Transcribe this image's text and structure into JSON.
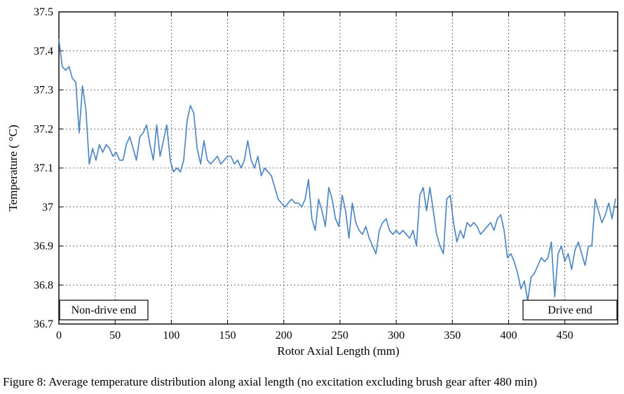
{
  "figure": {
    "caption": "Figure 8: Average temperature distribution along axial length (no excitation excluding brush gear after 480 min)"
  },
  "chart_data": {
    "type": "line",
    "title": "",
    "xlabel": "Rotor Axial Length (mm)",
    "ylabel": "Temperature ( °C)",
    "xlim": [
      0,
      497
    ],
    "ylim": [
      36.7,
      37.5
    ],
    "grid": true,
    "legend_position": "none",
    "line_color": "#4f87c5",
    "grid_color": "#444444",
    "frame_color": "#000000",
    "x_ticks": [
      0,
      50,
      100,
      150,
      200,
      250,
      300,
      350,
      400,
      450
    ],
    "x_tick_labels": [
      "0",
      "50",
      "100",
      "150",
      "200",
      "250",
      "300",
      "350",
      "400",
      "450"
    ],
    "y_ticks": [
      36.7,
      36.8,
      36.9,
      37,
      37.1,
      37.2,
      37.3,
      37.4,
      37.5
    ],
    "y_tick_labels": [
      "36.7",
      "36.8",
      "36.9",
      "37",
      "37.1",
      "37.2",
      "37.3",
      "37.4",
      "37.5"
    ],
    "annotations": [
      {
        "text": "Non-drive end",
        "position": "bottom-left"
      },
      {
        "text": "Drive end",
        "position": "bottom-right"
      }
    ],
    "series": [
      {
        "name": "Average temperature",
        "x": [
          0,
          3,
          6,
          9,
          12,
          15,
          18,
          21,
          24,
          27,
          30,
          33,
          36,
          39,
          42,
          45,
          48,
          51,
          54,
          57,
          60,
          63,
          66,
          69,
          72,
          75,
          78,
          81,
          84,
          87,
          90,
          93,
          96,
          99,
          102,
          105,
          108,
          111,
          114,
          117,
          120,
          123,
          126,
          129,
          132,
          135,
          138,
          141,
          144,
          147,
          150,
          153,
          156,
          159,
          162,
          165,
          168,
          171,
          174,
          177,
          180,
          183,
          186,
          189,
          192,
          195,
          198,
          201,
          204,
          207,
          210,
          213,
          216,
          219,
          222,
          225,
          228,
          231,
          234,
          237,
          240,
          243,
          246,
          249,
          252,
          255,
          258,
          261,
          264,
          267,
          270,
          273,
          276,
          279,
          282,
          285,
          288,
          291,
          294,
          297,
          300,
          303,
          306,
          309,
          312,
          315,
          318,
          321,
          324,
          327,
          330,
          333,
          336,
          339,
          342,
          345,
          348,
          351,
          354,
          357,
          360,
          363,
          366,
          369,
          372,
          375,
          378,
          381,
          384,
          387,
          390,
          393,
          396,
          399,
          402,
          405,
          408,
          411,
          414,
          417,
          420,
          423,
          426,
          429,
          432,
          435,
          438,
          441,
          444,
          447,
          450,
          453,
          456,
          459,
          462,
          465,
          468,
          471,
          474,
          477,
          480,
          483,
          486,
          489,
          492,
          495
        ],
        "y": [
          37.43,
          37.36,
          37.35,
          37.36,
          37.33,
          37.32,
          37.19,
          37.31,
          37.25,
          37.11,
          37.15,
          37.12,
          37.16,
          37.14,
          37.16,
          37.15,
          37.13,
          37.14,
          37.12,
          37.12,
          37.16,
          37.18,
          37.15,
          37.12,
          37.18,
          37.19,
          37.21,
          37.16,
          37.12,
          37.21,
          37.13,
          37.17,
          37.21,
          37.12,
          37.09,
          37.1,
          37.09,
          37.12,
          37.22,
          37.26,
          37.24,
          37.15,
          37.11,
          37.17,
          37.12,
          37.11,
          37.12,
          37.13,
          37.11,
          37.12,
          37.13,
          37.13,
          37.11,
          37.12,
          37.1,
          37.12,
          37.17,
          37.12,
          37.1,
          37.13,
          37.08,
          37.1,
          37.09,
          37.08,
          37.05,
          37.02,
          37.01,
          37.0,
          37.01,
          37.02,
          37.01,
          37.01,
          37.0,
          37.02,
          37.07,
          36.97,
          36.94,
          37.02,
          36.99,
          36.95,
          37.05,
          37.02,
          36.97,
          36.95,
          37.03,
          36.99,
          36.92,
          37.01,
          36.96,
          36.94,
          36.93,
          36.95,
          36.92,
          36.9,
          36.88,
          36.94,
          36.96,
          36.97,
          36.94,
          36.93,
          36.94,
          36.93,
          36.94,
          36.93,
          36.92,
          36.94,
          36.9,
          37.03,
          37.05,
          36.99,
          37.05,
          36.99,
          36.93,
          36.9,
          36.88,
          37.02,
          37.03,
          36.96,
          36.91,
          36.94,
          36.92,
          36.96,
          36.95,
          36.96,
          36.95,
          36.93,
          36.94,
          36.95,
          36.96,
          36.94,
          36.97,
          36.98,
          36.94,
          36.87,
          36.88,
          36.86,
          36.83,
          36.79,
          36.81,
          36.76,
          36.82,
          36.83,
          36.85,
          36.87,
          36.86,
          36.87,
          36.91,
          36.77,
          36.88,
          36.9,
          36.86,
          36.88,
          36.84,
          36.89,
          36.91,
          36.88,
          36.85,
          36.9,
          36.9,
          37.02,
          36.99,
          36.96,
          36.98,
          37.01,
          36.97,
          37.02
        ]
      }
    ]
  }
}
